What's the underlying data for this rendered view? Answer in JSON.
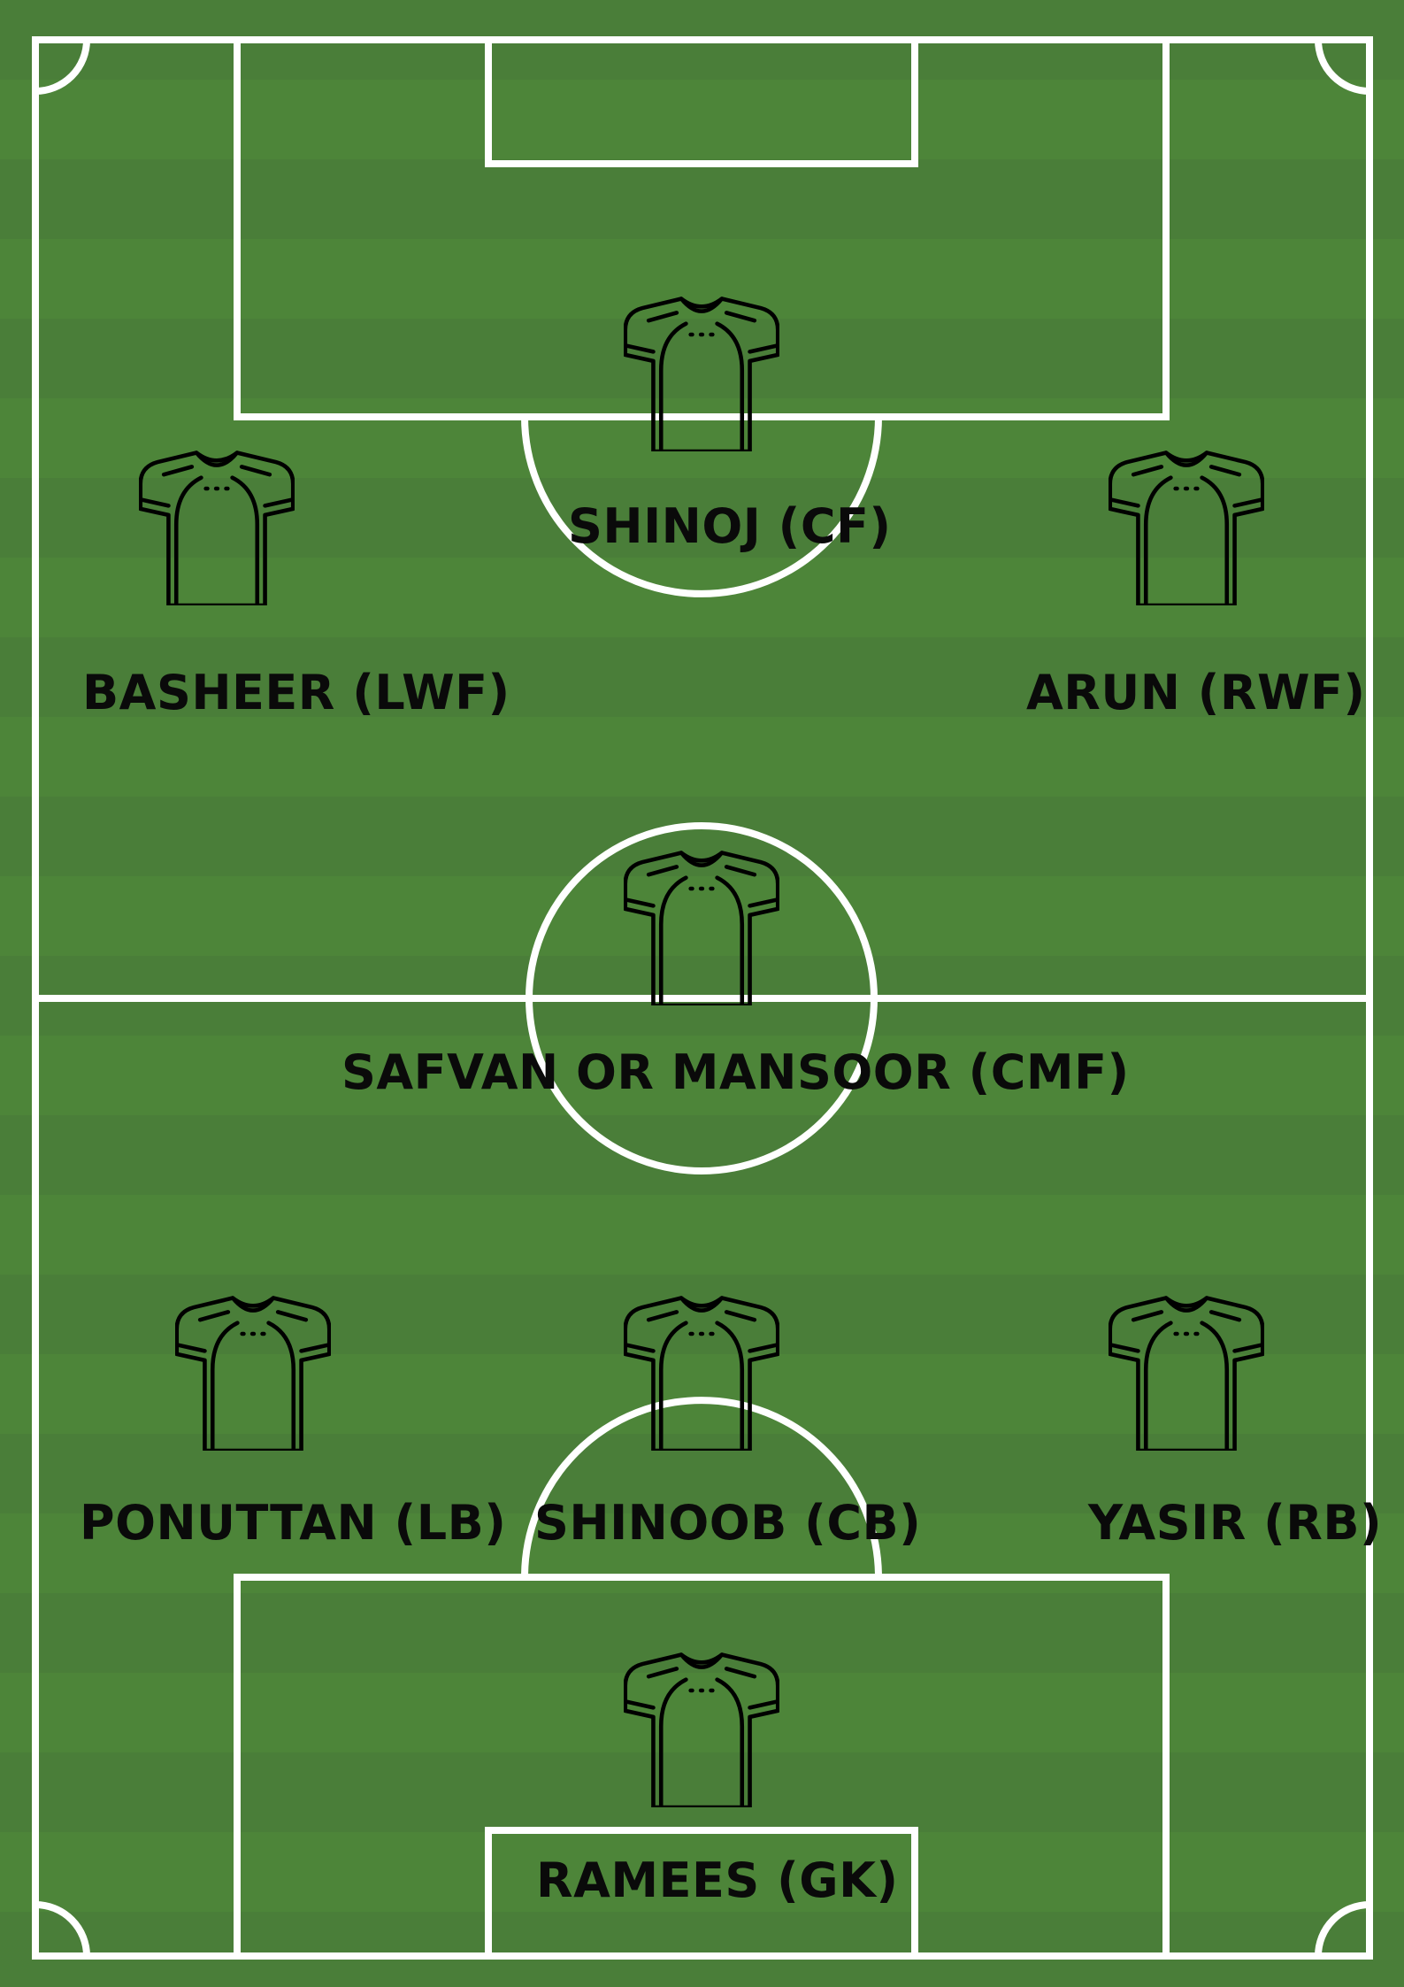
{
  "field": {
    "grass_color": "#4b8138",
    "line_color": "#ffffff",
    "jersey_color": "#000000"
  },
  "players": [
    {
      "id": "cf",
      "label": "SHINOJ (CF)",
      "icon": "jersey-icon"
    },
    {
      "id": "lwf",
      "label": "BASHEER (LWF)",
      "icon": "jersey-icon"
    },
    {
      "id": "rwf",
      "label": "ARUN (RWF)",
      "icon": "jersey-icon"
    },
    {
      "id": "cmf",
      "label": "SAFVAN OR MANSOOR (CMF)",
      "icon": "jersey-icon"
    },
    {
      "id": "lb",
      "label": "PONUTTAN (LB)",
      "icon": "jersey-icon"
    },
    {
      "id": "cb",
      "label": "SHINOOB (CB)",
      "icon": "jersey-icon"
    },
    {
      "id": "rb",
      "label": "YASIR (RB)",
      "icon": "jersey-icon"
    },
    {
      "id": "gk",
      "label": "RAMEES (GK)",
      "icon": "jersey-icon"
    }
  ]
}
